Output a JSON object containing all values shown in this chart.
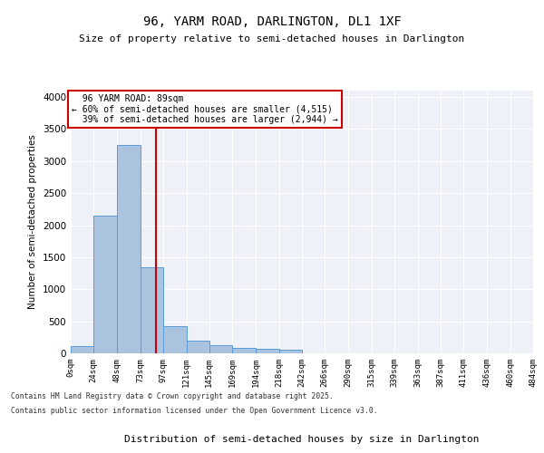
{
  "title": "96, YARM ROAD, DARLINGTON, DL1 1XF",
  "subtitle": "Size of property relative to semi-detached houses in Darlington",
  "xlabel": "Distribution of semi-detached houses by size in Darlington",
  "ylabel": "Number of semi-detached properties",
  "property_size": 89,
  "property_label": "96 YARM ROAD: 89sqm",
  "pct_smaller": 60,
  "pct_larger": 39,
  "count_smaller": 4515,
  "count_larger": 2944,
  "bin_edges": [
    0,
    24,
    48,
    73,
    97,
    121,
    145,
    169,
    194,
    218,
    242,
    266,
    290,
    315,
    339,
    363,
    387,
    411,
    436,
    460,
    484
  ],
  "bin_labels": [
    "0sqm",
    "24sqm",
    "48sqm",
    "73sqm",
    "97sqm",
    "121sqm",
    "145sqm",
    "169sqm",
    "194sqm",
    "218sqm",
    "242sqm",
    "266sqm",
    "290sqm",
    "315sqm",
    "339sqm",
    "363sqm",
    "387sqm",
    "411sqm",
    "436sqm",
    "460sqm",
    "484sqm"
  ],
  "bar_values": [
    120,
    2150,
    3250,
    1350,
    420,
    200,
    130,
    90,
    70,
    55,
    0,
    0,
    0,
    0,
    0,
    0,
    0,
    0,
    0,
    0
  ],
  "bar_color": "#aac4e0",
  "bar_edge_color": "#5b9bd5",
  "vline_x": 89,
  "vline_color": "#cc0000",
  "annotation_box_color": "#cc0000",
  "bg_color": "#eef2f8",
  "grid_color": "#ffffff",
  "ylim": [
    0,
    4100
  ],
  "footer_line1": "Contains HM Land Registry data © Crown copyright and database right 2025.",
  "footer_line2": "Contains public sector information licensed under the Open Government Licence v3.0."
}
